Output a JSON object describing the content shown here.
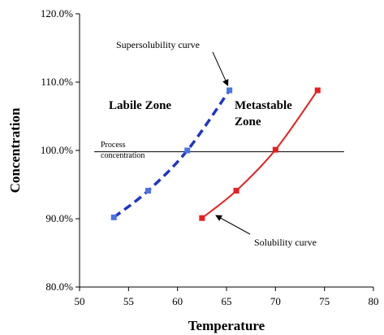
{
  "chart_data": {
    "type": "line",
    "xlabel": "Temperature",
    "ylabel": "Concentration",
    "xlim": [
      50,
      80
    ],
    "ylim": [
      80,
      120
    ],
    "xticks": [
      "50",
      "55",
      "60",
      "65",
      "70",
      "75",
      "80"
    ],
    "yticks": [
      "80.0%",
      "90.0%",
      "100.0%",
      "110.0%",
      "120.0%"
    ],
    "grid": false,
    "series": [
      {
        "label": "Supersolubility curve",
        "color": "#1f35c8",
        "marker_color": "#4a74e8",
        "line_style": "dashed",
        "x": [
          53.5,
          57,
          61,
          65.3
        ],
        "y": [
          90.2,
          94.1,
          100.0,
          108.8
        ]
      },
      {
        "label": "Solubility curve",
        "color": "#e81e1e",
        "marker_color": "#e81e1e",
        "line_style": "solid",
        "x": [
          62.5,
          66,
          70,
          74.3
        ],
        "y": [
          90.1,
          94.1,
          100.1,
          108.8
        ]
      }
    ],
    "process_line": {
      "y": 99.8,
      "x_from": 51.5,
      "x_to": 77,
      "label_lines": [
        "Process",
        "concentration"
      ]
    },
    "zones": [
      {
        "label_lines": [
          "Labile Zone"
        ],
        "x": 54,
        "y": 106
      },
      {
        "label_lines": [
          "Metastable",
          "Zone"
        ],
        "x": 66.2,
        "y": 106
      }
    ]
  }
}
